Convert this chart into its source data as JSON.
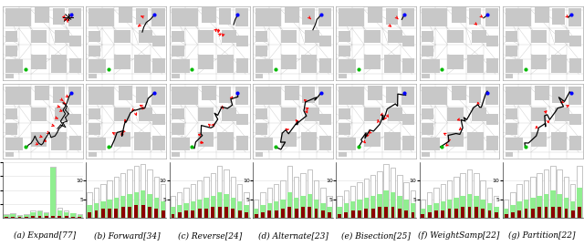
{
  "n_cols": 7,
  "captions": [
    "(a) Expand[77]",
    "(b) Forward[34]",
    "(c) Reverse[24]",
    "(d) Alternate[23]",
    "(e) Bisection[25]",
    "(f) WeightSamp[22]",
    "(g) Partition[22]"
  ],
  "chart_keys": [
    "expand",
    "forward",
    "reverse",
    "alternate",
    "bisection",
    "weightsamp",
    "partition"
  ],
  "bar_charts": {
    "expand": {
      "ylim": 40,
      "yticks": [
        10,
        20,
        30,
        40
      ],
      "bars": [
        {
          "total": 2.5,
          "green": 2.0,
          "red": 0.8
        },
        {
          "total": 3.0,
          "green": 2.5,
          "red": 0.8
        },
        {
          "total": 2.0,
          "green": 1.5,
          "red": 0.5
        },
        {
          "total": 2.5,
          "green": 2.0,
          "red": 0.8
        },
        {
          "total": 5.0,
          "green": 4.0,
          "red": 1.2
        },
        {
          "total": 5.5,
          "green": 4.5,
          "red": 1.5
        },
        {
          "total": 4.0,
          "green": 3.0,
          "red": 1.0
        },
        {
          "total": 37.0,
          "green": 36.0,
          "red": 1.5
        },
        {
          "total": 7.0,
          "green": 5.5,
          "red": 1.5
        },
        {
          "total": 5.0,
          "green": 4.0,
          "red": 1.2
        },
        {
          "total": 3.5,
          "green": 3.0,
          "red": 0.8
        },
        {
          "total": 2.5,
          "green": 2.0,
          "red": 0.5
        }
      ]
    },
    "forward": {
      "ylim": 15,
      "yticks": [
        5,
        10
      ],
      "bars": [
        {
          "total": 7.0,
          "green": 3.5,
          "red": 1.5
        },
        {
          "total": 8.0,
          "green": 4.0,
          "red": 2.0
        },
        {
          "total": 9.0,
          "green": 4.5,
          "red": 2.5
        },
        {
          "total": 10.0,
          "green": 5.0,
          "red": 2.5
        },
        {
          "total": 11.0,
          "green": 5.5,
          "red": 2.5
        },
        {
          "total": 12.0,
          "green": 6.0,
          "red": 3.0
        },
        {
          "total": 13.0,
          "green": 6.5,
          "red": 3.0
        },
        {
          "total": 14.0,
          "green": 7.0,
          "red": 3.5
        },
        {
          "total": 14.5,
          "green": 7.5,
          "red": 3.5
        },
        {
          "total": 13.0,
          "green": 6.5,
          "red": 3.0
        },
        {
          "total": 11.0,
          "green": 5.5,
          "red": 2.5
        },
        {
          "total": 9.0,
          "green": 4.5,
          "red": 2.0
        }
      ]
    },
    "reverse": {
      "ylim": 15,
      "yticks": [
        5,
        10
      ],
      "bars": [
        {
          "total": 6.0,
          "green": 3.0,
          "red": 1.0
        },
        {
          "total": 7.0,
          "green": 3.5,
          "red": 1.5
        },
        {
          "total": 8.0,
          "green": 4.0,
          "red": 2.0
        },
        {
          "total": 9.0,
          "green": 4.5,
          "red": 2.0
        },
        {
          "total": 10.0,
          "green": 5.0,
          "red": 2.5
        },
        {
          "total": 11.0,
          "green": 5.5,
          "red": 2.5
        },
        {
          "total": 12.0,
          "green": 6.0,
          "red": 3.0
        },
        {
          "total": 14.0,
          "green": 7.0,
          "red": 3.0
        },
        {
          "total": 13.0,
          "green": 6.5,
          "red": 3.0
        },
        {
          "total": 11.0,
          "green": 5.5,
          "red": 2.5
        },
        {
          "total": 9.0,
          "green": 4.5,
          "red": 2.0
        },
        {
          "total": 7.0,
          "green": 3.5,
          "red": 1.5
        }
      ]
    },
    "alternate": {
      "ylim": 15,
      "yticks": [
        5,
        10
      ],
      "bars": [
        {
          "total": 5.0,
          "green": 2.5,
          "red": 1.0
        },
        {
          "total": 7.0,
          "green": 3.5,
          "red": 1.5
        },
        {
          "total": 8.0,
          "green": 4.0,
          "red": 2.0
        },
        {
          "total": 9.0,
          "green": 4.5,
          "red": 2.0
        },
        {
          "total": 10.0,
          "green": 5.0,
          "red": 2.5
        },
        {
          "total": 14.0,
          "green": 7.0,
          "red": 3.0
        },
        {
          "total": 11.0,
          "green": 5.5,
          "red": 2.5
        },
        {
          "total": 12.0,
          "green": 6.0,
          "red": 3.0
        },
        {
          "total": 13.0,
          "green": 6.5,
          "red": 3.0
        },
        {
          "total": 10.0,
          "green": 5.0,
          "red": 2.5
        },
        {
          "total": 8.0,
          "green": 4.0,
          "red": 2.0
        },
        {
          "total": 6.0,
          "green": 3.0,
          "red": 1.5
        }
      ]
    },
    "bisection": {
      "ylim": 15,
      "yticks": [
        5,
        10
      ],
      "bars": [
        {
          "total": 6.0,
          "green": 3.0,
          "red": 1.0
        },
        {
          "total": 7.5,
          "green": 4.0,
          "red": 1.5
        },
        {
          "total": 8.5,
          "green": 4.5,
          "red": 2.0
        },
        {
          "total": 9.5,
          "green": 5.0,
          "red": 2.0
        },
        {
          "total": 10.5,
          "green": 5.5,
          "red": 2.5
        },
        {
          "total": 11.5,
          "green": 6.0,
          "red": 2.5
        },
        {
          "total": 12.5,
          "green": 6.5,
          "red": 3.0
        },
        {
          "total": 14.5,
          "green": 7.5,
          "red": 3.0
        },
        {
          "total": 13.5,
          "green": 7.0,
          "red": 3.0
        },
        {
          "total": 11.5,
          "green": 6.0,
          "red": 2.5
        },
        {
          "total": 9.5,
          "green": 5.0,
          "red": 2.0
        },
        {
          "total": 7.5,
          "green": 4.0,
          "red": 1.5
        }
      ]
    },
    "weightsamp": {
      "ylim": 15,
      "yticks": [
        5,
        10
      ],
      "bars": [
        {
          "total": 5.0,
          "green": 2.5,
          "red": 1.0
        },
        {
          "total": 7.0,
          "green": 3.5,
          "red": 1.5
        },
        {
          "total": 8.0,
          "green": 4.0,
          "red": 2.0
        },
        {
          "total": 9.0,
          "green": 4.5,
          "red": 2.0
        },
        {
          "total": 10.0,
          "green": 5.0,
          "red": 2.5
        },
        {
          "total": 11.0,
          "green": 5.5,
          "red": 2.5
        },
        {
          "total": 12.0,
          "green": 6.0,
          "red": 3.0
        },
        {
          "total": 13.0,
          "green": 6.5,
          "red": 3.0
        },
        {
          "total": 12.0,
          "green": 6.0,
          "red": 3.0
        },
        {
          "total": 10.0,
          "green": 5.0,
          "red": 2.5
        },
        {
          "total": 8.0,
          "green": 4.0,
          "red": 2.0
        },
        {
          "total": 6.0,
          "green": 3.0,
          "red": 1.5
        }
      ]
    },
    "partition": {
      "ylim": 15,
      "yticks": [
        5,
        10
      ],
      "bars": [
        {
          "total": 5.0,
          "green": 2.5,
          "red": 1.0
        },
        {
          "total": 7.0,
          "green": 3.5,
          "red": 1.5
        },
        {
          "total": 9.0,
          "green": 4.5,
          "red": 2.0
        },
        {
          "total": 10.0,
          "green": 5.0,
          "red": 2.5
        },
        {
          "total": 11.0,
          "green": 5.5,
          "red": 2.5
        },
        {
          "total": 12.0,
          "green": 6.0,
          "red": 3.0
        },
        {
          "total": 13.0,
          "green": 6.5,
          "red": 3.0
        },
        {
          "total": 14.0,
          "green": 7.5,
          "red": 3.0
        },
        {
          "total": 13.0,
          "green": 6.5,
          "red": 3.0
        },
        {
          "total": 11.0,
          "green": 5.5,
          "red": 2.5
        },
        {
          "total": 9.0,
          "green": 4.5,
          "red": 2.0
        },
        {
          "total": 14.0,
          "green": 8.0,
          "red": 3.0
        }
      ]
    }
  },
  "map_bg_color": "#ffffff",
  "block_color": "#c8c8c8",
  "road_color": "#c0c0c0",
  "path_black": "#000000",
  "path_red": "#ff0000",
  "start_color": "#0000ff",
  "goal_color": "#00bb00",
  "bar_white": "#ffffff",
  "bar_green_light": "#90ee90",
  "bar_red_dark": "#8B0000",
  "figure_bg": "#ffffff",
  "caption_fontsize": 6.5,
  "tick_fontsize": 4.5
}
